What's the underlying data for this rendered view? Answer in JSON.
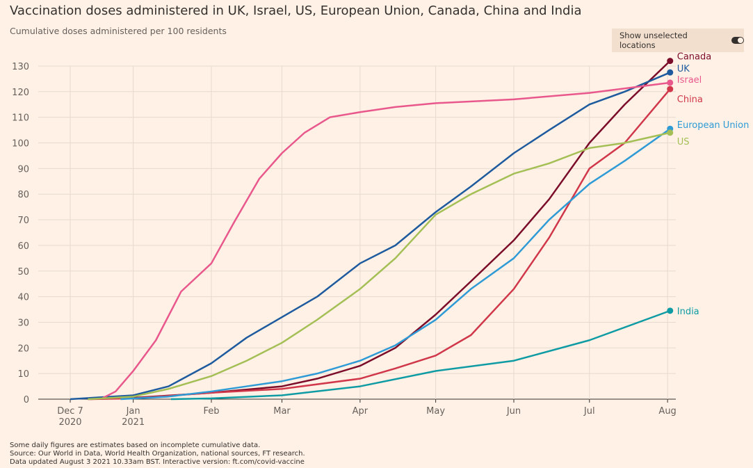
{
  "header": {
    "title": "Vaccination doses administered in UK, Israel, US, European Union, Canada, China and India",
    "subtitle": "Cumulative doses administered per 100 residents"
  },
  "toggle": {
    "label": "Show unselected locations",
    "state": "on"
  },
  "footer": [
    "Some daily figures are estimates based on incomplete cumulative data.",
    "Source: Our World in Data, World Health Organization, national sources, FT research.",
    "Data updated August 3 2021 10.33am BST. Interactive version: ft.com/covid-vaccine"
  ],
  "chart_data": {
    "type": "line",
    "title": "Vaccination doses administered in UK, Israel, US, European Union, Canada, China and India",
    "ylabel": "Cumulative doses administered per 100 residents",
    "ylim": [
      0,
      130
    ],
    "yticks": [
      0,
      10,
      20,
      30,
      40,
      50,
      60,
      70,
      80,
      90,
      100,
      110,
      120,
      130
    ],
    "xlim": [
      "2020-12-07",
      "2021-08-02"
    ],
    "xticks": [
      {
        "date": "2020-12-07",
        "label": [
          "Dec 7",
          "2020"
        ]
      },
      {
        "date": "2021-01-01",
        "label": [
          "Jan",
          "2021"
        ]
      },
      {
        "date": "2021-02-01",
        "label": [
          "Feb"
        ]
      },
      {
        "date": "2021-03-01",
        "label": [
          "Mar"
        ]
      },
      {
        "date": "2021-04-01",
        "label": [
          "Apr"
        ]
      },
      {
        "date": "2021-05-01",
        "label": [
          "May"
        ]
      },
      {
        "date": "2021-06-01",
        "label": [
          "Jun"
        ]
      },
      {
        "date": "2021-07-01",
        "label": [
          "Jul"
        ]
      },
      {
        "date": "2021-08-01",
        "label": [
          "Aug"
        ]
      }
    ],
    "grid": true,
    "series": [
      {
        "name": "Canada",
        "color": "#7b0d2a",
        "labelOffset": -7,
        "points": [
          [
            "2020-12-14",
            0
          ],
          [
            "2021-01-01",
            0.5
          ],
          [
            "2021-02-01",
            2.5
          ],
          [
            "2021-03-01",
            5
          ],
          [
            "2021-03-15",
            8
          ],
          [
            "2021-04-01",
            13
          ],
          [
            "2021-04-15",
            20
          ],
          [
            "2021-05-01",
            33
          ],
          [
            "2021-05-15",
            46
          ],
          [
            "2021-06-01",
            62
          ],
          [
            "2021-06-15",
            78
          ],
          [
            "2021-07-01",
            100
          ],
          [
            "2021-07-15",
            115
          ],
          [
            "2021-08-02",
            132
          ]
        ]
      },
      {
        "name": "UK",
        "color": "#1d5a9e",
        "labelOffset": -6,
        "points": [
          [
            "2020-12-07",
            0
          ],
          [
            "2021-01-01",
            1.5
          ],
          [
            "2021-01-15",
            5
          ],
          [
            "2021-02-01",
            14
          ],
          [
            "2021-02-15",
            24
          ],
          [
            "2021-03-01",
            32
          ],
          [
            "2021-03-15",
            40
          ],
          [
            "2021-04-01",
            53
          ],
          [
            "2021-04-15",
            60
          ],
          [
            "2021-05-01",
            73
          ],
          [
            "2021-05-15",
            83
          ],
          [
            "2021-06-01",
            96
          ],
          [
            "2021-06-15",
            105
          ],
          [
            "2021-07-01",
            115
          ],
          [
            "2021-07-15",
            120
          ],
          [
            "2021-08-02",
            127.5
          ]
        ]
      },
      {
        "name": "Israel",
        "color": "#e9588c",
        "labelOffset": -5,
        "points": [
          [
            "2020-12-19",
            0
          ],
          [
            "2020-12-25",
            3
          ],
          [
            "2021-01-01",
            11
          ],
          [
            "2021-01-10",
            23
          ],
          [
            "2021-01-20",
            42
          ],
          [
            "2021-02-01",
            53
          ],
          [
            "2021-02-10",
            69
          ],
          [
            "2021-02-20",
            86
          ],
          [
            "2021-03-01",
            96
          ],
          [
            "2021-03-10",
            104
          ],
          [
            "2021-03-20",
            110
          ],
          [
            "2021-04-01",
            112
          ],
          [
            "2021-04-15",
            114
          ],
          [
            "2021-05-01",
            115.5
          ],
          [
            "2021-06-01",
            117
          ],
          [
            "2021-07-01",
            119.5
          ],
          [
            "2021-08-02",
            123.5
          ]
        ]
      },
      {
        "name": "China",
        "color": "#d0374a",
        "labelOffset": 14,
        "points": [
          [
            "2020-12-15",
            0
          ],
          [
            "2021-01-01",
            0.3
          ],
          [
            "2021-02-01",
            2.5
          ],
          [
            "2021-03-01",
            4
          ],
          [
            "2021-04-01",
            8
          ],
          [
            "2021-04-15",
            12
          ],
          [
            "2021-05-01",
            17
          ],
          [
            "2021-05-15",
            25
          ],
          [
            "2021-06-01",
            43
          ],
          [
            "2021-06-15",
            63
          ],
          [
            "2021-07-01",
            90
          ],
          [
            "2021-07-15",
            100
          ],
          [
            "2021-08-02",
            121
          ]
        ]
      },
      {
        "name": "European Union",
        "color": "#2e9ad6",
        "labelOffset": -6,
        "points": [
          [
            "2020-12-27",
            0
          ],
          [
            "2021-01-15",
            1
          ],
          [
            "2021-02-01",
            3
          ],
          [
            "2021-02-15",
            5
          ],
          [
            "2021-03-01",
            7
          ],
          [
            "2021-03-15",
            10
          ],
          [
            "2021-04-01",
            15
          ],
          [
            "2021-04-15",
            21
          ],
          [
            "2021-05-01",
            31
          ],
          [
            "2021-05-15",
            43
          ],
          [
            "2021-06-01",
            55
          ],
          [
            "2021-06-15",
            70
          ],
          [
            "2021-07-01",
            84
          ],
          [
            "2021-07-15",
            93
          ],
          [
            "2021-08-02",
            105.5
          ]
        ]
      },
      {
        "name": "US",
        "color": "#a4bf55",
        "labelOffset": 12,
        "points": [
          [
            "2020-12-14",
            0
          ],
          [
            "2021-01-01",
            1
          ],
          [
            "2021-01-15",
            4
          ],
          [
            "2021-02-01",
            9
          ],
          [
            "2021-02-15",
            15
          ],
          [
            "2021-03-01",
            22
          ],
          [
            "2021-03-15",
            31
          ],
          [
            "2021-04-01",
            43
          ],
          [
            "2021-04-15",
            55
          ],
          [
            "2021-05-01",
            72
          ],
          [
            "2021-05-15",
            80
          ],
          [
            "2021-06-01",
            88
          ],
          [
            "2021-06-15",
            92
          ],
          [
            "2021-07-01",
            98
          ],
          [
            "2021-07-15",
            100
          ],
          [
            "2021-08-02",
            104
          ]
        ]
      },
      {
        "name": "India",
        "color": "#0f9ba4",
        "labelOffset": 0,
        "points": [
          [
            "2021-01-16",
            0
          ],
          [
            "2021-02-01",
            0.3
          ],
          [
            "2021-03-01",
            1.5
          ],
          [
            "2021-04-01",
            5
          ],
          [
            "2021-05-01",
            11
          ],
          [
            "2021-06-01",
            15
          ],
          [
            "2021-07-01",
            23
          ],
          [
            "2021-08-02",
            34.5
          ]
        ]
      }
    ]
  }
}
